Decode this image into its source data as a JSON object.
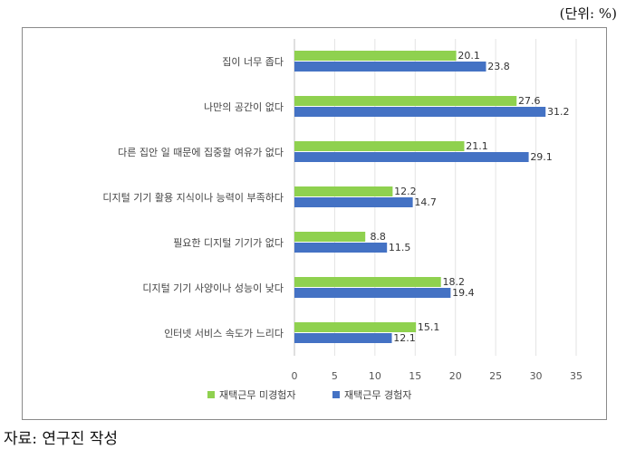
{
  "unit_note": "(단위: %)",
  "source": "자료: 연구진 작성",
  "chart_data": {
    "type": "bar",
    "orientation": "horizontal",
    "title": "",
    "xlabel": "",
    "ylabel": "",
    "categories": [
      "집이 너무 좁다",
      "나만의 공간이 없다",
      "다른 집안 일 때문에 집중할 여유가 없다",
      "디지털 기기 활용 지식이나 능력이 부족하다",
      "필요한 디지털 기기가 없다",
      "디지털 기기 사양이나 성능이 낮다",
      "인터넷 서비스 속도가 느리다"
    ],
    "series": [
      {
        "name": "재택근무 미경험자",
        "color": "#8fd14f",
        "values": [
          20.1,
          27.6,
          21.1,
          12.2,
          8.8,
          18.2,
          15.1
        ],
        "labels": [
          "20.1",
          "27.6",
          "21.1",
          "12.2",
          "8.8",
          "18.2",
          "15.1"
        ]
      },
      {
        "name": "재택근무 경험자",
        "color": "#4472c4",
        "values": [
          23.8,
          31.2,
          29.1,
          14.7,
          11.5,
          19.4,
          12.1
        ],
        "labels": [
          "23.8",
          "31.2",
          "29.1",
          "14.7",
          "11.5",
          "19.4",
          "12.1"
        ]
      }
    ],
    "xlim": [
      0,
      35
    ],
    "xticks": [
      0,
      5,
      10,
      15,
      20,
      25,
      30,
      35
    ],
    "grid": true,
    "legend_position": "bottom"
  }
}
